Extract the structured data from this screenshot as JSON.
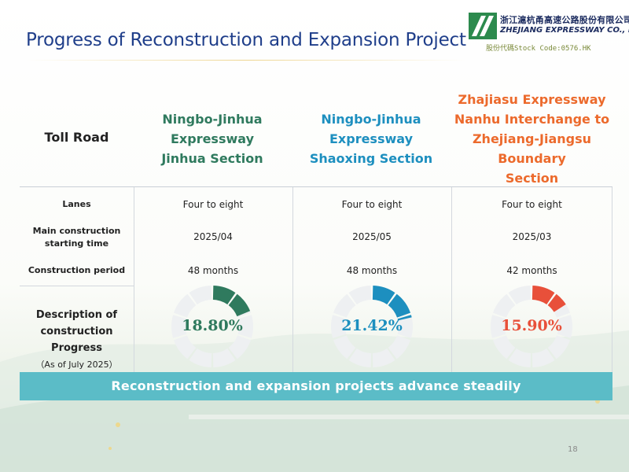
{
  "title": "Progress of Reconstruction and Expansion Project",
  "logo": {
    "name_cn": "浙江滬杭甬高速公路股份有限公司",
    "name_en": "ZHEJIANG EXPRESSWAY CO., LTD.",
    "stock_code": "股份代碼Stock Code:0576.HK"
  },
  "table": {
    "header_label": "Toll Road",
    "row_labels": {
      "lanes": "Lanes",
      "start_line1": "Main construction",
      "start_line2": "starting time",
      "period": "Construction period",
      "desc_line1": "Description of",
      "desc_line2": "construction",
      "desc_line3": "Progress",
      "desc_line4": "（As of July 2025）"
    },
    "columns": [
      {
        "name_lines": [
          "Ningbo-Jinhua",
          "Expressway",
          "Jinhua Section"
        ],
        "lanes": "Four to eight",
        "start": "2025/04",
        "period": "48 months",
        "progress_label": "18.80%",
        "progress_value": 0.188,
        "color": "#2f7a5e"
      },
      {
        "name_lines": [
          "Ningbo-Jinhua",
          "Expressway",
          "Shaoxing Section"
        ],
        "lanes": "Four to eight",
        "start": "2025/05",
        "period": "48 months",
        "progress_label": "21.42%",
        "progress_value": 0.2142,
        "color": "#1d8fbf"
      },
      {
        "name_lines": [
          "Zhajiasu Expressway",
          "Nanhu Interchange to",
          "Zhejiang-Jiangsu",
          "Boundary",
          "Section"
        ],
        "lanes": "Four to eight",
        "start": "2025/03",
        "period": "42 months",
        "progress_label": "15.90%",
        "progress_value": 0.159,
        "color": "#e8503a"
      }
    ]
  },
  "banner": "Reconstruction and expansion projects advance steadily",
  "page_number": "18"
}
